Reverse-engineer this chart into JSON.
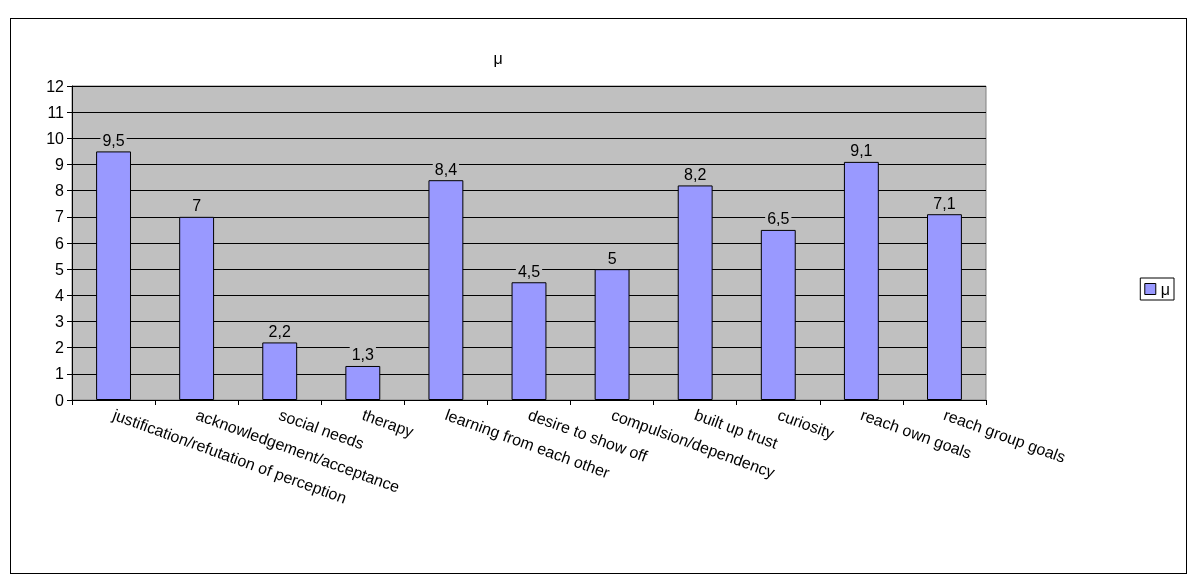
{
  "chart_data": {
    "type": "bar",
    "title": "μ",
    "categories": [
      "justification/refutation of perception",
      "acknowledgement/acceptance",
      "social needs",
      "therapy",
      "learning from each other",
      "desire to show off",
      "compulsion/dependency",
      "built up trust",
      "curiosity",
      "reach own goals",
      "reach group goals"
    ],
    "series": [
      {
        "name": "μ",
        "color": "#9999ff",
        "values": [
          9.5,
          7,
          2.2,
          1.3,
          8.4,
          4.5,
          5,
          8.2,
          6.5,
          9.1,
          7.1
        ],
        "value_labels": [
          "9,5",
          "7",
          "2,2",
          "1,3",
          "8,4",
          "4,5",
          "5",
          "8,2",
          "6,5",
          "9,1",
          "7,1"
        ]
      }
    ],
    "ylim": [
      0,
      12
    ],
    "yticks": [
      0,
      1,
      2,
      3,
      4,
      5,
      6,
      7,
      8,
      9,
      10,
      11,
      12
    ],
    "grid": "y",
    "legend": "right"
  }
}
